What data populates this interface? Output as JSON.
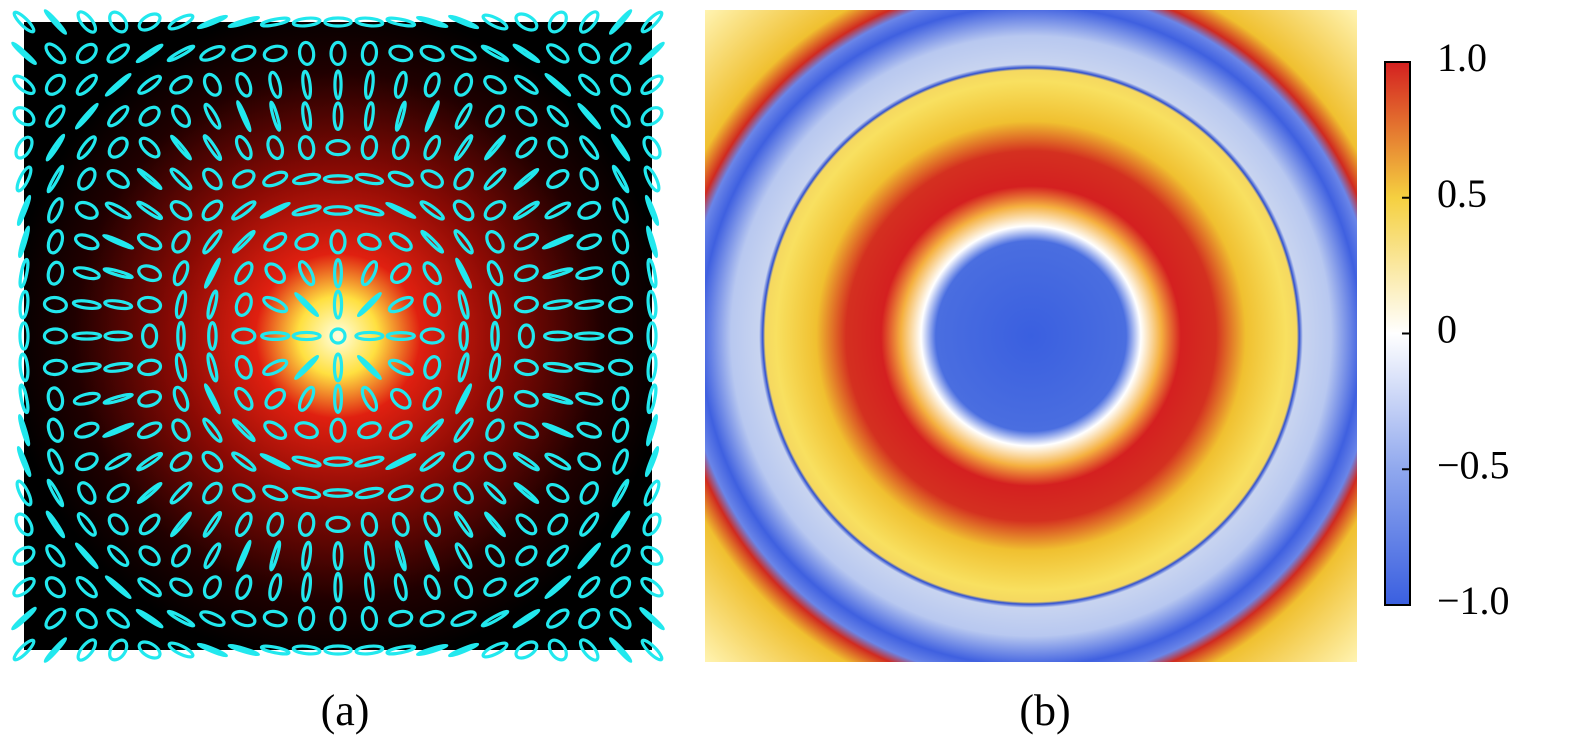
{
  "panels": [
    {
      "label": "(a)"
    },
    {
      "label": "(b)"
    }
  ],
  "colorbar": {
    "lim": [
      -1,
      1
    ],
    "ticks": [
      {
        "value": 1,
        "label": "1.0"
      },
      {
        "value": 0.5,
        "label": "0.5"
      },
      0,
      {
        "value": -0.5,
        "label": "−0.5"
      },
      {
        "value": -1,
        "label": "−1.0"
      }
    ]
  }
}
